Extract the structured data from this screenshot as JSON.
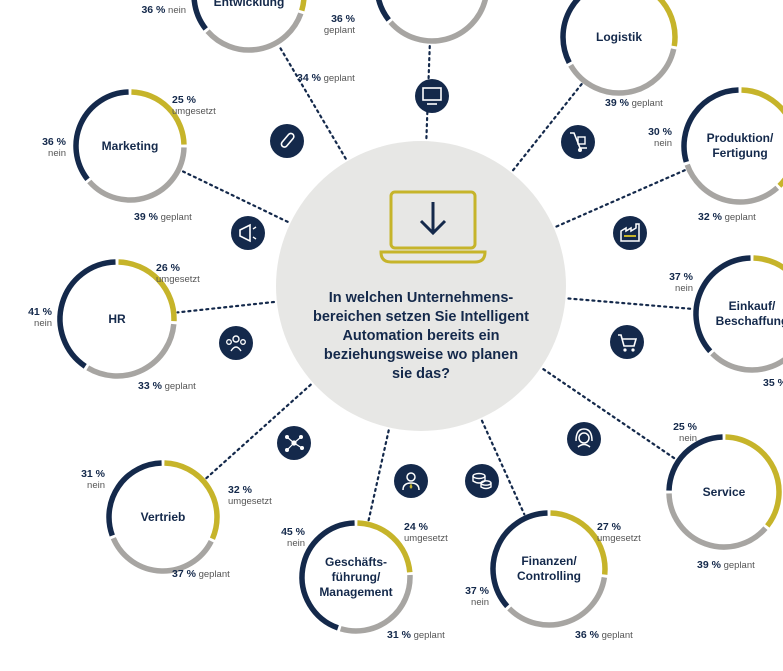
{
  "center": {
    "question": "In welchen Unternehmens-\nbereichen setzen Sie Intelligent\nAutomation bereits ein\nbeziehungsweise wo planen\nsie das?",
    "icon": "laptop-download-icon"
  },
  "colors": {
    "navy": "#14294b",
    "gold": "#c6b42a",
    "gray": "#a7a5a2",
    "center_bg": "#e7e7e5",
    "icon_bg": "#14294b"
  },
  "legend_terms": {
    "umgesetzt": "umgesetzt",
    "geplant": "geplant",
    "nein": "nein"
  },
  "chart_data": {
    "type": "pie",
    "title": "In welchen Unternehmensbereichen setzen Sie Intelligent Automation bereits ein beziehungsweise wo planen sie das?",
    "categories": [
      "umgesetzt",
      "geplant",
      "nein"
    ],
    "departments": [
      {
        "id": "forschung",
        "label": "Forschung &\nEntwicklung",
        "icon": "test-tube-icon",
        "values": {
          "umgesetzt": 30,
          "geplant": 34,
          "nein": 36
        },
        "labels": {
          "umgesetzt": "",
          "geplant": "34 %",
          "nein": "36 %"
        }
      },
      {
        "id": "it",
        "label": "",
        "icon": "monitor-icon",
        "values": {
          "umgesetzt": 28,
          "geplant": 36,
          "nein": 36
        },
        "labels": {
          "umgesetzt": "",
          "geplant": "36 %",
          "nein": ""
        }
      },
      {
        "id": "logistik",
        "label": "Logistik",
        "icon": "hand-truck-icon",
        "values": {
          "umgesetzt": 28,
          "geplant": 39,
          "nein": 33
        },
        "labels": {
          "umgesetzt": "",
          "geplant": "39 %",
          "nein": ""
        }
      },
      {
        "id": "marketing",
        "label": "Marketing",
        "icon": "megaphone-icon",
        "values": {
          "umgesetzt": 25,
          "geplant": 39,
          "nein": 36
        },
        "labels": {
          "umgesetzt": "25 %",
          "geplant": "39 %",
          "nein": "36 %"
        }
      },
      {
        "id": "produktion",
        "label": "Produktion/\nFertigung",
        "icon": "factory-icon",
        "values": {
          "umgesetzt": 38,
          "geplant": 32,
          "nein": 30
        },
        "labels": {
          "umgesetzt": "",
          "geplant": "32 %",
          "nein": "30 %"
        }
      },
      {
        "id": "hr",
        "label": "HR",
        "icon": "people-group-icon",
        "values": {
          "umgesetzt": 26,
          "geplant": 33,
          "nein": 41
        },
        "labels": {
          "umgesetzt": "26 %",
          "geplant": "33 %",
          "nein": "41 %"
        }
      },
      {
        "id": "einkauf",
        "label": "Einkauf/\nBeschaffung",
        "icon": "shopping-cart-icon",
        "values": {
          "umgesetzt": 28,
          "geplant": 35,
          "nein": 37
        },
        "labels": {
          "umgesetzt": "",
          "geplant": "35 %",
          "nein": "37 %"
        }
      },
      {
        "id": "vertrieb",
        "label": "Vertrieb",
        "icon": "network-icon",
        "values": {
          "umgesetzt": 32,
          "geplant": 37,
          "nein": 31
        },
        "labels": {
          "umgesetzt": "32 %",
          "geplant": "37 %",
          "nein": "31 %"
        }
      },
      {
        "id": "service",
        "label": "Service",
        "icon": "headset-icon",
        "values": {
          "umgesetzt": 36,
          "geplant": 39,
          "nein": 25
        },
        "labels": {
          "umgesetzt": "",
          "geplant": "39 %",
          "nein": "25 %"
        }
      },
      {
        "id": "management",
        "label": "Geschäfts-\nführung/\nManagement",
        "icon": "manager-icon",
        "values": {
          "umgesetzt": 24,
          "geplant": 31,
          "nein": 45
        },
        "labels": {
          "umgesetzt": "24 %",
          "geplant": "31 %",
          "nein": "45 %"
        }
      },
      {
        "id": "finanzen",
        "label": "Finanzen/\nControlling",
        "icon": "coins-icon",
        "values": {
          "umgesetzt": 27,
          "geplant": 36,
          "nein": 37
        },
        "labels": {
          "umgesetzt": "27 %",
          "geplant": "36 %",
          "nein": "37 %"
        }
      }
    ]
  }
}
